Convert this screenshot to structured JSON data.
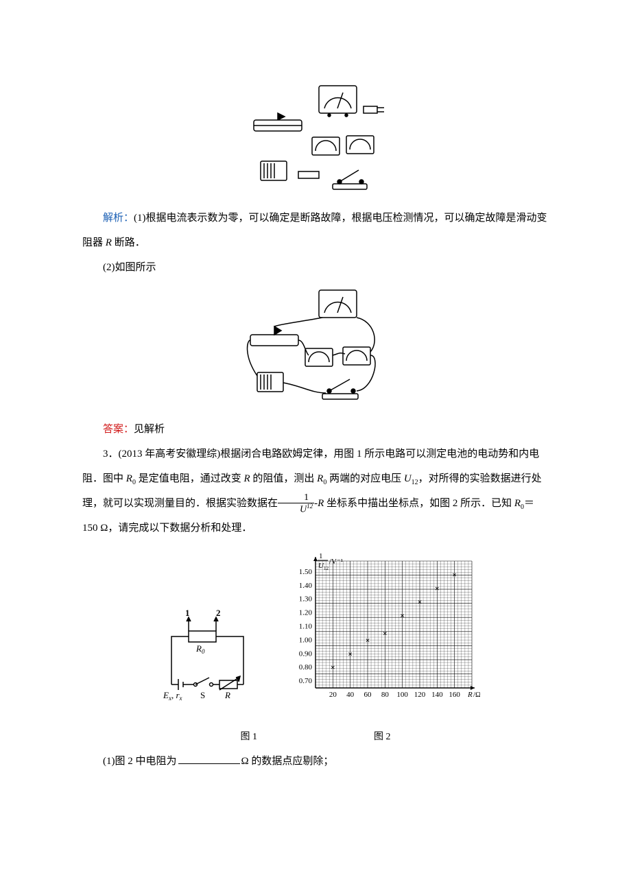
{
  "analysis": {
    "label": "解析：",
    "part1_prefix": "(1)",
    "part1_text": "根据电流表示数为零，可以确定是断路故障，根据电压检测情况，可以确定故障是滑动变阻器",
    "part1_var": " R ",
    "part1_suffix": "断路．",
    "part2_prefix": "(2)",
    "part2_text": "如图所示"
  },
  "answer": {
    "label": "答案：",
    "text": "见解析"
  },
  "q3": {
    "number": "3．",
    "source": "(2013 年高考安徽理综)",
    "text_a": "根据闭合电路欧姆定律，用图 1 所示电路可以测定电池的电动势和内电阻．图中 ",
    "R0": "R",
    "R0_sub": "0",
    "text_b": " 是定值电阻，通过改变 ",
    "R": "R",
    "text_c": " 的阻值，测出 ",
    "text_d": " 两端的对应电压 ",
    "U12": "U",
    "U12_sub": "12",
    "text_e": "，对所得的实验数据进行处理，就可以实现测量目的．根据实验数据在",
    "frac_num": "1",
    "frac_den_U": "U",
    "frac_den_sub": "12",
    "text_f": "-",
    "text_g": " 坐标系中描出坐标点，如图 2 所示．已知 ",
    "R0_val": "＝150 Ω，",
    "text_h": "请完成以下数据分析和处理．",
    "sub1_prefix": "(1)",
    "sub1_a": "图 2 中电阻为",
    "sub1_b": "Ω 的数据点应剔除；"
  },
  "fig": {
    "caption1": "图 1",
    "caption2": "图 2",
    "circuit": {
      "E": "E",
      "x": "x",
      "r": "r",
      "S": "S",
      "R": "R",
      "R0": "R",
      "R0_sub": "0",
      "t1": "1",
      "t2": "2"
    },
    "chart": {
      "ylabel_frac_num": "1",
      "ylabel_frac_den": "U",
      "ylabel_sub": "12",
      "ylabel_unit": "/V⁻¹",
      "xlabel_R": "R",
      "xlabel_unit": "/Ω",
      "yticks": [
        "0.70",
        "0.80",
        "0.90",
        "1.00",
        "1.10",
        "1.20",
        "1.30",
        "1.40",
        "1.50"
      ],
      "xticks": [
        "20",
        "40",
        "60",
        "80",
        "100",
        "120",
        "140",
        "160"
      ],
      "grid_color": "#000000",
      "point_marker": "×",
      "points": [
        {
          "x": 20,
          "y": 0.8
        },
        {
          "x": 40,
          "y": 0.9
        },
        {
          "x": 60,
          "y": 1.0
        },
        {
          "x": 80,
          "y": 1.05
        },
        {
          "x": 100,
          "y": 1.18
        },
        {
          "x": 120,
          "y": 1.28
        },
        {
          "x": 140,
          "y": 1.38
        },
        {
          "x": 160,
          "y": 1.48
        }
      ],
      "xlim": [
        0,
        180
      ],
      "ylim": [
        0.65,
        1.58
      ]
    }
  }
}
